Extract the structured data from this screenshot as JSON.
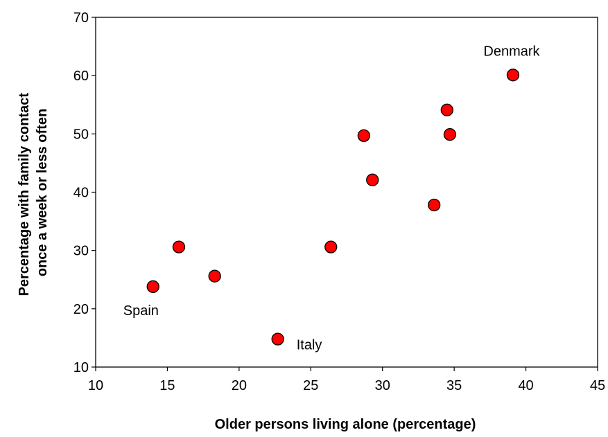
{
  "chart_data": {
    "type": "scatter",
    "title": "",
    "xlabel": "Older persons living alone (percentage)",
    "ylabel": "Percentage with family contact once a week or less often",
    "ylabel_lines": [
      "Percentage with family contact",
      "once a week or less often"
    ],
    "xlim": [
      10,
      45
    ],
    "ylim": [
      10,
      70
    ],
    "x_ticks": [
      10,
      15,
      20,
      25,
      30,
      35,
      40,
      45
    ],
    "y_ticks": [
      10,
      20,
      30,
      40,
      50,
      60,
      70
    ],
    "grid": false,
    "marker_color": "#ff0000",
    "marker_edge_color": "#000000",
    "points": [
      {
        "x": 14.0,
        "y": 23.8,
        "label": "Spain"
      },
      {
        "x": 15.8,
        "y": 30.6,
        "label": ""
      },
      {
        "x": 18.3,
        "y": 25.6,
        "label": ""
      },
      {
        "x": 22.7,
        "y": 14.8,
        "label": "Italy"
      },
      {
        "x": 26.4,
        "y": 30.6,
        "label": ""
      },
      {
        "x": 28.7,
        "y": 49.7,
        "label": ""
      },
      {
        "x": 29.3,
        "y": 42.1,
        "label": ""
      },
      {
        "x": 33.6,
        "y": 37.8,
        "label": ""
      },
      {
        "x": 34.5,
        "y": 54.1,
        "label": ""
      },
      {
        "x": 34.7,
        "y": 49.9,
        "label": ""
      },
      {
        "x": 39.1,
        "y": 60.1,
        "label": "Denmark"
      }
    ]
  }
}
